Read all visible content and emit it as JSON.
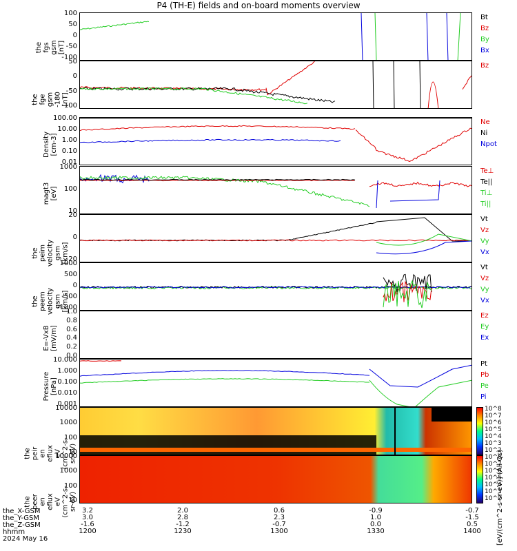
{
  "title": "P4 (TH-E) fields and on-board moments overview",
  "colors": {
    "black": "#000000",
    "red": "#e00000",
    "green": "#22cc22",
    "blue": "#0000dd",
    "yellow": "#ffee00"
  },
  "chart_data": [
    {
      "type": "line",
      "ylabel": "the\nfgs\ngsm\n[nT]",
      "ylim": [
        -100,
        100
      ],
      "yticks": [
        "100",
        "50",
        "0",
        "-50",
        "-100"
      ],
      "legend": [
        [
          "Bt",
          "#000000"
        ],
        [
          "Bz",
          "#e00000"
        ],
        [
          "By",
          "#22cc22"
        ],
        [
          "Bx",
          "#0000dd"
        ]
      ]
    },
    {
      "type": "line",
      "ylabel": "the\nfge\ngsm\n-180\n[nT]",
      "ylim": [
        -140,
        60
      ],
      "yticks": [
        "50",
        "0",
        "-50",
        "-100"
      ],
      "legend": [
        [
          "Bz",
          "#e00000"
        ]
      ]
    },
    {
      "type": "line",
      "ylabel": "Density\n[cm-3]",
      "scale": "log",
      "yticks": [
        "100.00",
        "10.00",
        "1.00",
        "0.10",
        "0.01"
      ],
      "legend": [
        [
          "Ne",
          "#e00000"
        ],
        [
          "Ni",
          "#000000"
        ],
        [
          "Npot",
          "#0000dd"
        ]
      ]
    },
    {
      "type": "line",
      "ylabel": "magt3\n[eV]",
      "scale": "log",
      "yticks": [
        "1000",
        "100",
        "10"
      ],
      "legend": [
        [
          "Te⊥",
          "#e00000"
        ],
        [
          "Te||",
          "#000000"
        ],
        [
          "Ti⊥",
          "#22cc22"
        ],
        [
          "Ti||",
          "#22cc22"
        ]
      ]
    },
    {
      "type": "line",
      "ylabel": "the\npeim\nvelocity\ngsm\n[km/s]",
      "yticks": [
        "20",
        "0",
        "-20"
      ],
      "legend": [
        [
          "Vt",
          "#000000"
        ],
        [
          "Vz",
          "#e00000"
        ],
        [
          "Vy",
          "#22cc22"
        ],
        [
          "Vx",
          "#0000dd"
        ]
      ]
    },
    {
      "type": "line",
      "ylabel": "the\npeem\nvelocity\ngsm\n[km/s]",
      "yticks": [
        "1000",
        "500",
        "0",
        "-500",
        "-1000"
      ],
      "legend": [
        [
          "Vt",
          "#000000"
        ],
        [
          "Vz",
          "#e00000"
        ],
        [
          "Vy",
          "#22cc22"
        ],
        [
          "Vx",
          "#0000dd"
        ]
      ]
    },
    {
      "type": "line",
      "ylabel": "E=-VxB\n[mV/m]",
      "ylim": [
        0,
        1
      ],
      "yticks": [
        "1.0",
        "0.8",
        "0.6",
        "0.4",
        "0.2",
        "0.0"
      ],
      "legend": [
        [
          "Ez",
          "#e00000"
        ],
        [
          "Ey",
          "#22cc22"
        ],
        [
          "Ex",
          "#0000dd"
        ]
      ]
    },
    {
      "type": "line",
      "ylabel": "Pressure\n[nPa]",
      "scale": "log",
      "yticks": [
        "10.000",
        "1.000",
        "0.100",
        "0.010",
        "0.001"
      ],
      "legend": [
        [
          "Pt",
          "#000000"
        ],
        [
          "Pb",
          "#e00000"
        ],
        [
          "Pe",
          "#22cc22"
        ],
        [
          "Pi",
          "#0000dd"
        ]
      ]
    },
    {
      "type": "heatmap",
      "ylabel": "the\npeir\nen\neflux\neV\n(cm^2-s-\nsr-eV)",
      "scale": "log",
      "yticks": [
        "10000",
        "1000",
        "100",
        "10"
      ]
    },
    {
      "type": "heatmap",
      "ylabel": "the\npeer\nen\neflux\neV\n(cm^2-s-\nsr-eV)",
      "scale": "log",
      "yticks": [
        "10000",
        "1000",
        "100",
        "10"
      ]
    }
  ],
  "colorbar": {
    "ticks": [
      "10^8",
      "10^7",
      "10^6",
      "10^5",
      "10^4",
      "10^3",
      "10^2"
    ],
    "label": "[eV/(cm^2-s-sr-eV)] (All Qs)"
  },
  "xaxis": {
    "rows": [
      "the_X-GSM",
      "the_Y-GSM",
      "the_Z-GSM",
      "hhmm",
      "2024 May 16"
    ],
    "columns": [
      {
        "vals": [
          "3.2",
          "3.0",
          "-1.6",
          "1200"
        ]
      },
      {
        "vals": [
          "2.0",
          "2.8",
          "-1.2",
          "1230"
        ]
      },
      {
        "vals": [
          "0.6",
          "2.3",
          "-0.7",
          "1300"
        ]
      },
      {
        "vals": [
          "-0.9",
          "1.0",
          "0.0",
          "1330"
        ]
      },
      {
        "vals": [
          "-0.7",
          "-1.5",
          "0.5",
          "1400"
        ]
      }
    ]
  }
}
